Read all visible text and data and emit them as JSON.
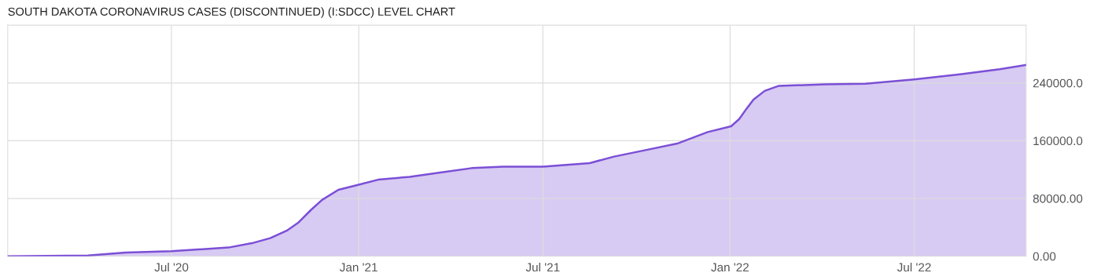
{
  "chart_data": {
    "type": "area",
    "title": "SOUTH DAKOTA CORONAVIRUS CASES (DISCONTINUED) (I:SDCC) LEVEL CHART",
    "x": [
      "2020-01-22",
      "2020-04-10",
      "2020-05-17",
      "2020-07-01",
      "2020-08-26",
      "2020-09-18",
      "2020-10-06",
      "2020-10-23",
      "2020-11-03",
      "2020-11-15",
      "2020-11-26",
      "2020-12-12",
      "2021-01-01",
      "2021-01-20",
      "2021-02-20",
      "2021-03-22",
      "2021-04-22",
      "2021-05-23",
      "2021-07-01",
      "2021-08-16",
      "2021-09-09",
      "2021-10-10",
      "2021-11-10",
      "2021-12-10",
      "2022-01-02",
      "2022-01-10",
      "2022-01-17",
      "2022-01-24",
      "2022-02-04",
      "2022-02-18",
      "2022-04-05",
      "2022-05-14",
      "2022-07-01",
      "2022-08-15",
      "2022-09-23",
      "2022-10-19"
    ],
    "series": [
      {
        "color": "#7b4fd6",
        "values": [
          0,
          1000,
          5000,
          7000,
          12000,
          18000,
          25000,
          36000,
          47000,
          64000,
          78000,
          92000,
          99000,
          106000,
          110000,
          116000,
          122000,
          124000,
          124000,
          129000,
          138000,
          147000,
          156000,
          172000,
          180000,
          190000,
          204000,
          217000,
          229000,
          236000,
          238000,
          239000,
          245000,
          252000,
          259000,
          265000
        ]
      }
    ],
    "xlim": [
      "2020-01-22",
      "2022-10-19"
    ],
    "xticks": [
      {
        "value": "2020-07-01",
        "label": "Jul '20"
      },
      {
        "value": "2021-01-01",
        "label": "Jan '21"
      },
      {
        "value": "2021-07-01",
        "label": "Jul '21"
      },
      {
        "value": "2022-01-01",
        "label": "Jan '22"
      },
      {
        "value": "2022-07-01",
        "label": "Jul '22"
      }
    ],
    "ylim": [
      0,
      320000
    ],
    "yticks": [
      {
        "value": 0,
        "label": "0.00"
      },
      {
        "value": 80000,
        "label": "80000.00"
      },
      {
        "value": 160000,
        "label": "160000.0"
      },
      {
        "value": 240000,
        "label": "240000.0"
      }
    ],
    "grid": true,
    "legend": false
  }
}
